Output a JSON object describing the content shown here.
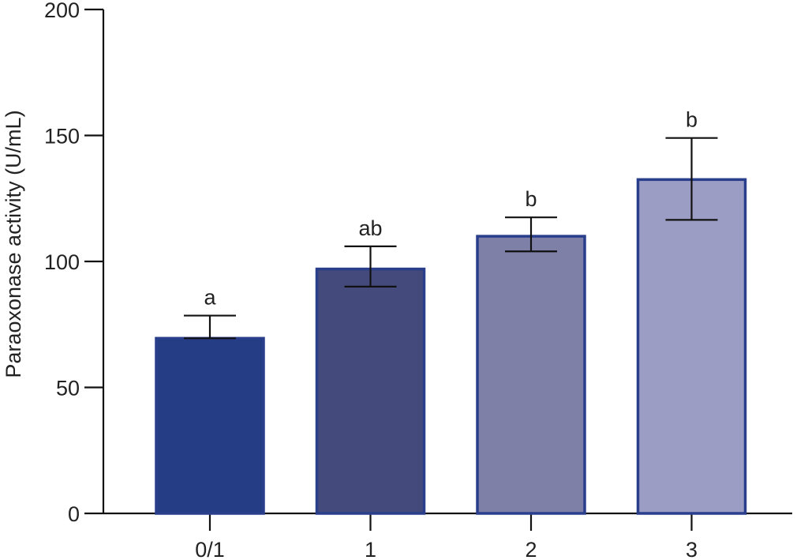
{
  "chart_data": {
    "type": "bar",
    "title": "",
    "xlabel": "",
    "ylabel": "Paraoxonase activity (U/mL)",
    "ylim": [
      0,
      200
    ],
    "yticks": [
      "0",
      "50",
      "100",
      "150",
      "200"
    ],
    "ytick_values": [
      0,
      50,
      100,
      150,
      200
    ],
    "categories": [
      "0/1",
      "1",
      "2",
      "3"
    ],
    "values": [
      69.5,
      97,
      110,
      132.5
    ],
    "error_upper": [
      78.5,
      106,
      117.5,
      149
    ],
    "error_lower": [
      69.5,
      90,
      104,
      116.5
    ],
    "significance_labels": [
      "a",
      "ab",
      "b",
      "b"
    ],
    "bar_colors": [
      "#253d85",
      "#444a7c",
      "#7e80a8",
      "#9c9dc4"
    ],
    "bar_edge_color": "#2a3f8c",
    "grid": false,
    "legend": "none"
  }
}
